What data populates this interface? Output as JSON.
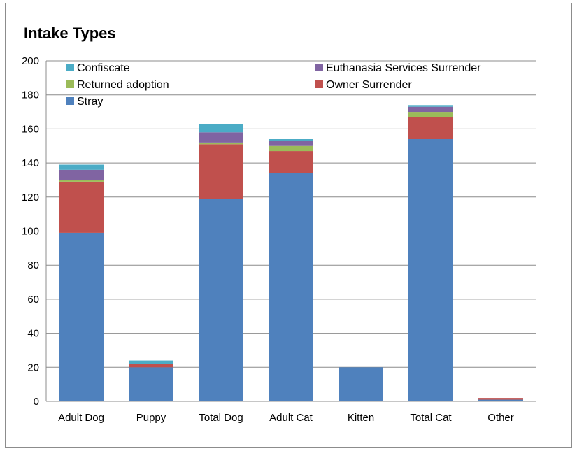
{
  "chart_data": {
    "type": "bar",
    "stacked": true,
    "title": "Intake Types",
    "xlabel": "",
    "ylabel": "",
    "ylim": [
      0,
      200
    ],
    "yticks": [
      0,
      20,
      40,
      60,
      80,
      100,
      120,
      140,
      160,
      180,
      200
    ],
    "grid": true,
    "legend_position": "top",
    "categories": [
      "Adult Dog",
      "Puppy",
      "Total Dog",
      "Adult Cat",
      "Kitten",
      "Total Cat",
      "Other"
    ],
    "series": [
      {
        "name": "Stray",
        "color": "#4f81bd",
        "values": [
          99,
          20,
          119,
          134,
          20,
          154,
          1
        ]
      },
      {
        "name": "Owner Surrender",
        "color": "#c0504d",
        "values": [
          30,
          2,
          32,
          13,
          0,
          13,
          1
        ]
      },
      {
        "name": "Returned adoption",
        "color": "#9bbb59",
        "values": [
          1,
          0,
          1,
          3,
          0,
          3,
          0
        ]
      },
      {
        "name": "Euthanasia Services Surrender",
        "color": "#8064a2",
        "values": [
          6,
          0,
          6,
          3,
          0,
          3,
          0
        ]
      },
      {
        "name": "Confiscate",
        "color": "#4bacc6",
        "values": [
          3,
          2,
          5,
          1,
          0,
          1,
          0
        ]
      }
    ],
    "legend_order": [
      "Confiscate",
      "Euthanasia Services Surrender",
      "Returned adoption",
      "Owner Surrender",
      "Stray"
    ]
  }
}
